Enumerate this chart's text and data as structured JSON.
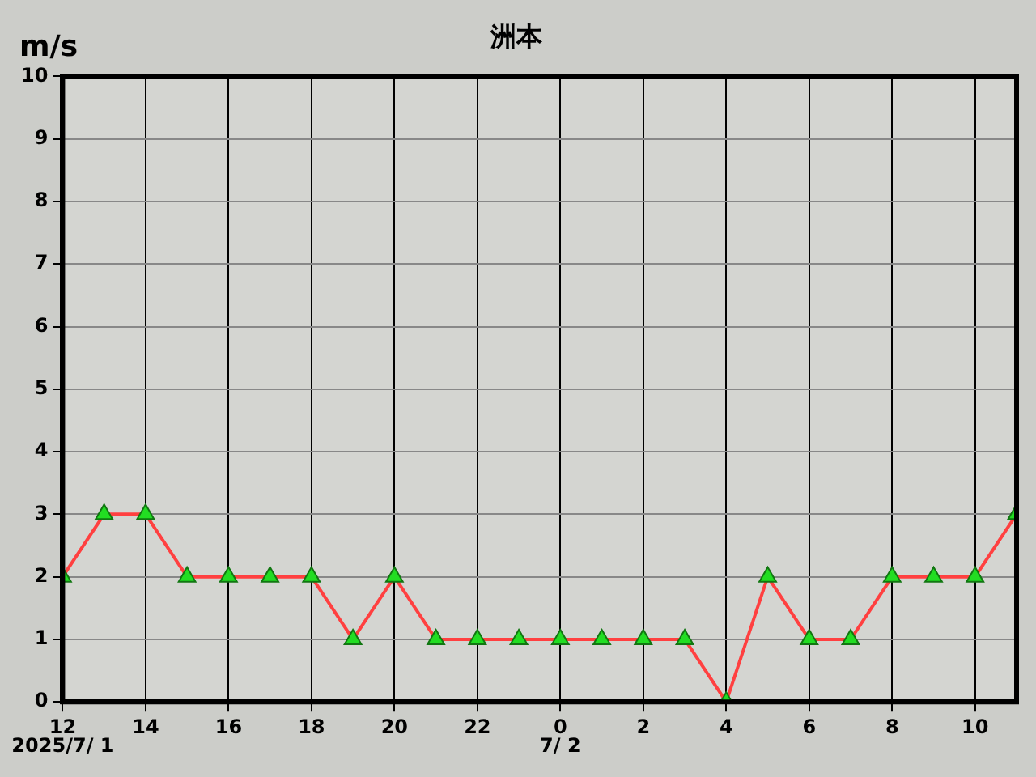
{
  "chart_data": {
    "type": "line",
    "title": "洲本",
    "ylabel": "m/s",
    "x": [
      "2025-07-01T12:00",
      "2025-07-01T13:00",
      "2025-07-01T14:00",
      "2025-07-01T15:00",
      "2025-07-01T16:00",
      "2025-07-01T17:00",
      "2025-07-01T18:00",
      "2025-07-01T19:00",
      "2025-07-01T20:00",
      "2025-07-01T21:00",
      "2025-07-01T22:00",
      "2025-07-01T23:00",
      "2025-07-02T00:00",
      "2025-07-02T01:00",
      "2025-07-02T02:00",
      "2025-07-02T03:00",
      "2025-07-02T04:00",
      "2025-07-02T05:00",
      "2025-07-02T06:00",
      "2025-07-02T07:00",
      "2025-07-02T08:00",
      "2025-07-02T09:00",
      "2025-07-02T10:00",
      "2025-07-02T11:00"
    ],
    "series": [
      {
        "color": "#ff4040",
        "values": [
          2,
          3,
          3,
          2,
          2,
          2,
          2,
          1,
          2,
          1,
          1,
          1,
          1,
          1,
          1,
          1,
          0,
          2,
          1,
          1,
          2,
          2,
          2,
          3
        ]
      }
    ],
    "xlim": [
      "2025-07-01T12:00",
      "2025-07-02T11:00"
    ],
    "xticks": [
      {
        "value": "2025-07-01T12:00",
        "label": "12"
      },
      {
        "value": "2025-07-01T14:00",
        "label": "14"
      },
      {
        "value": "2025-07-01T16:00",
        "label": "16"
      },
      {
        "value": "2025-07-01T18:00",
        "label": "18"
      },
      {
        "value": "2025-07-01T20:00",
        "label": "20"
      },
      {
        "value": "2025-07-01T22:00",
        "label": "22"
      },
      {
        "value": "2025-07-02T00:00",
        "label": "0"
      },
      {
        "value": "2025-07-02T02:00",
        "label": "2"
      },
      {
        "value": "2025-07-02T04:00",
        "label": "4"
      },
      {
        "value": "2025-07-02T06:00",
        "label": "6"
      },
      {
        "value": "2025-07-02T08:00",
        "label": "8"
      },
      {
        "value": "2025-07-02T10:00",
        "label": "10"
      }
    ],
    "ylim": [
      0,
      10
    ],
    "yticks": [
      0,
      1,
      2,
      3,
      4,
      5,
      6,
      7,
      8,
      9,
      10
    ],
    "annotations": [
      "2025/7/ 1",
      "7/ 2"
    ],
    "grid": true,
    "legend": false,
    "marker": "triangle",
    "line_style": "solid"
  }
}
